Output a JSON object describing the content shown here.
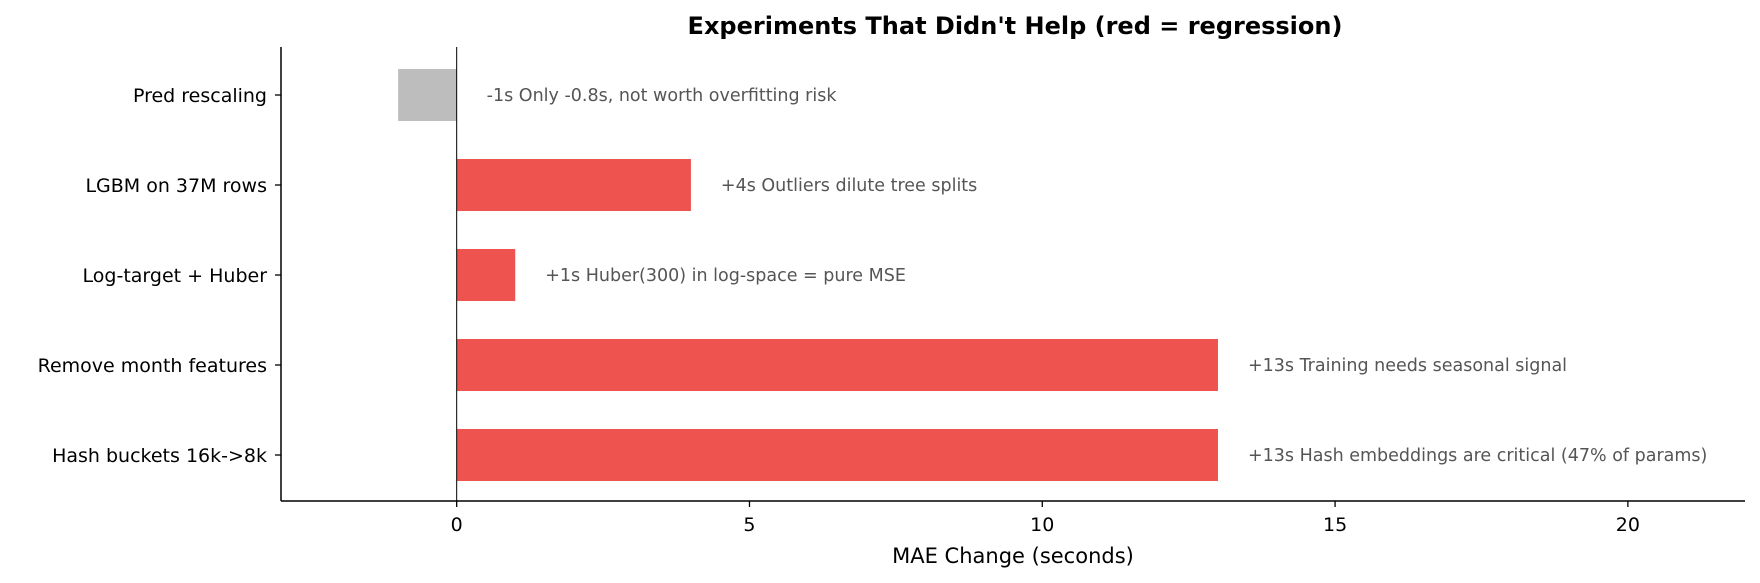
{
  "chart_data": {
    "type": "bar",
    "orientation": "horizontal",
    "title": "Experiments That Didn't Help (red = regression)",
    "xlabel": "MAE Change (seconds)",
    "ylabel": "",
    "xlim": [
      -3,
      22
    ],
    "xticks": [
      0,
      5,
      10,
      15,
      20
    ],
    "grid": false,
    "colors": {
      "regression": "#ee5350",
      "neutral": "#bdbdbd"
    },
    "categories": [
      "Pred rescaling",
      "LGBM on 37M rows",
      "Log-target + Huber",
      "Remove month features",
      "Hash buckets 16k->8k"
    ],
    "values": [
      -1,
      4,
      1,
      13,
      13
    ],
    "bar_status": [
      "neutral",
      "regression",
      "regression",
      "regression",
      "regression"
    ],
    "annotations": [
      "-1s  Only -0.8s, not worth overfitting risk",
      "+4s  Outliers dilute tree splits",
      "+1s  Huber(300) in log-space = pure MSE",
      "+13s  Training needs seasonal signal",
      "+13s  Hash embeddings are critical (47% of params)"
    ]
  }
}
